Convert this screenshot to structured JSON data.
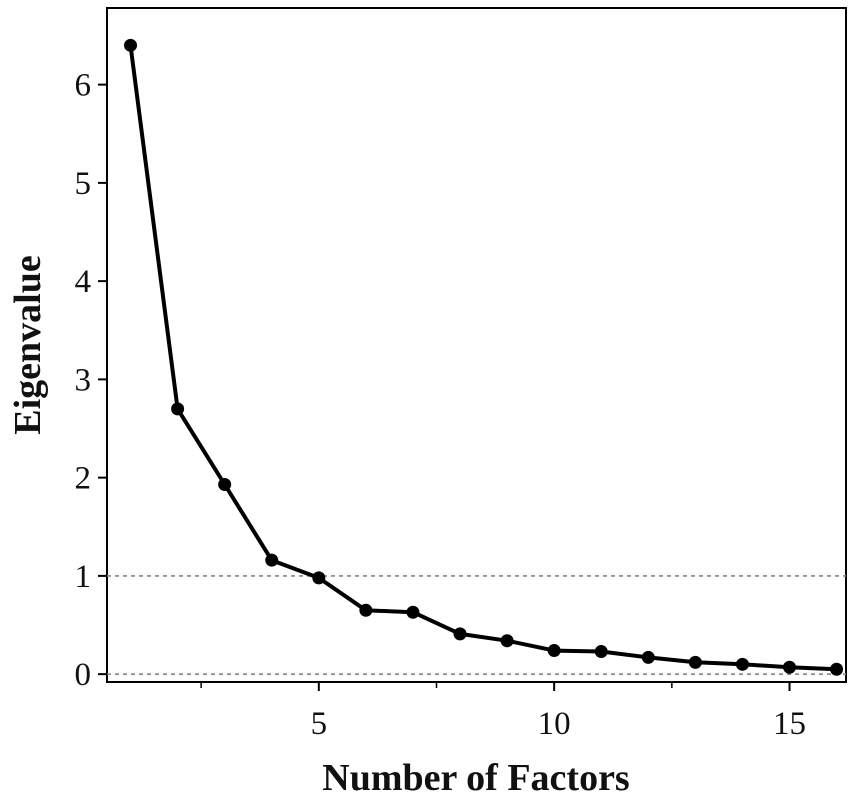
{
  "chart_data": {
    "type": "line",
    "title": "",
    "xlabel": "Number of Factors",
    "ylabel": "Eigenvalue",
    "x": [
      1,
      2,
      3,
      4,
      5,
      6,
      7,
      8,
      9,
      10,
      11,
      12,
      13,
      14,
      15,
      16
    ],
    "series": [
      {
        "values": [
          6.4,
          2.7,
          1.93,
          1.16,
          0.98,
          0.65,
          0.63,
          0.41,
          0.34,
          0.24,
          0.23,
          0.17,
          0.12,
          0.1,
          0.07,
          0.05
        ]
      }
    ],
    "xlim": [
      0.5,
      16.2
    ],
    "ylim": [
      -0.08,
      6.78
    ],
    "x_ticks": [
      5,
      10,
      15
    ],
    "x_minor_ticks": [
      2.5,
      7.5,
      12.5
    ],
    "y_ticks": [
      0,
      1,
      2,
      3,
      4,
      5,
      6
    ],
    "reference_lines": [
      0,
      1
    ],
    "grid": false,
    "legend": "none",
    "colors": {
      "line": "#000000",
      "reference": "#888888"
    }
  }
}
